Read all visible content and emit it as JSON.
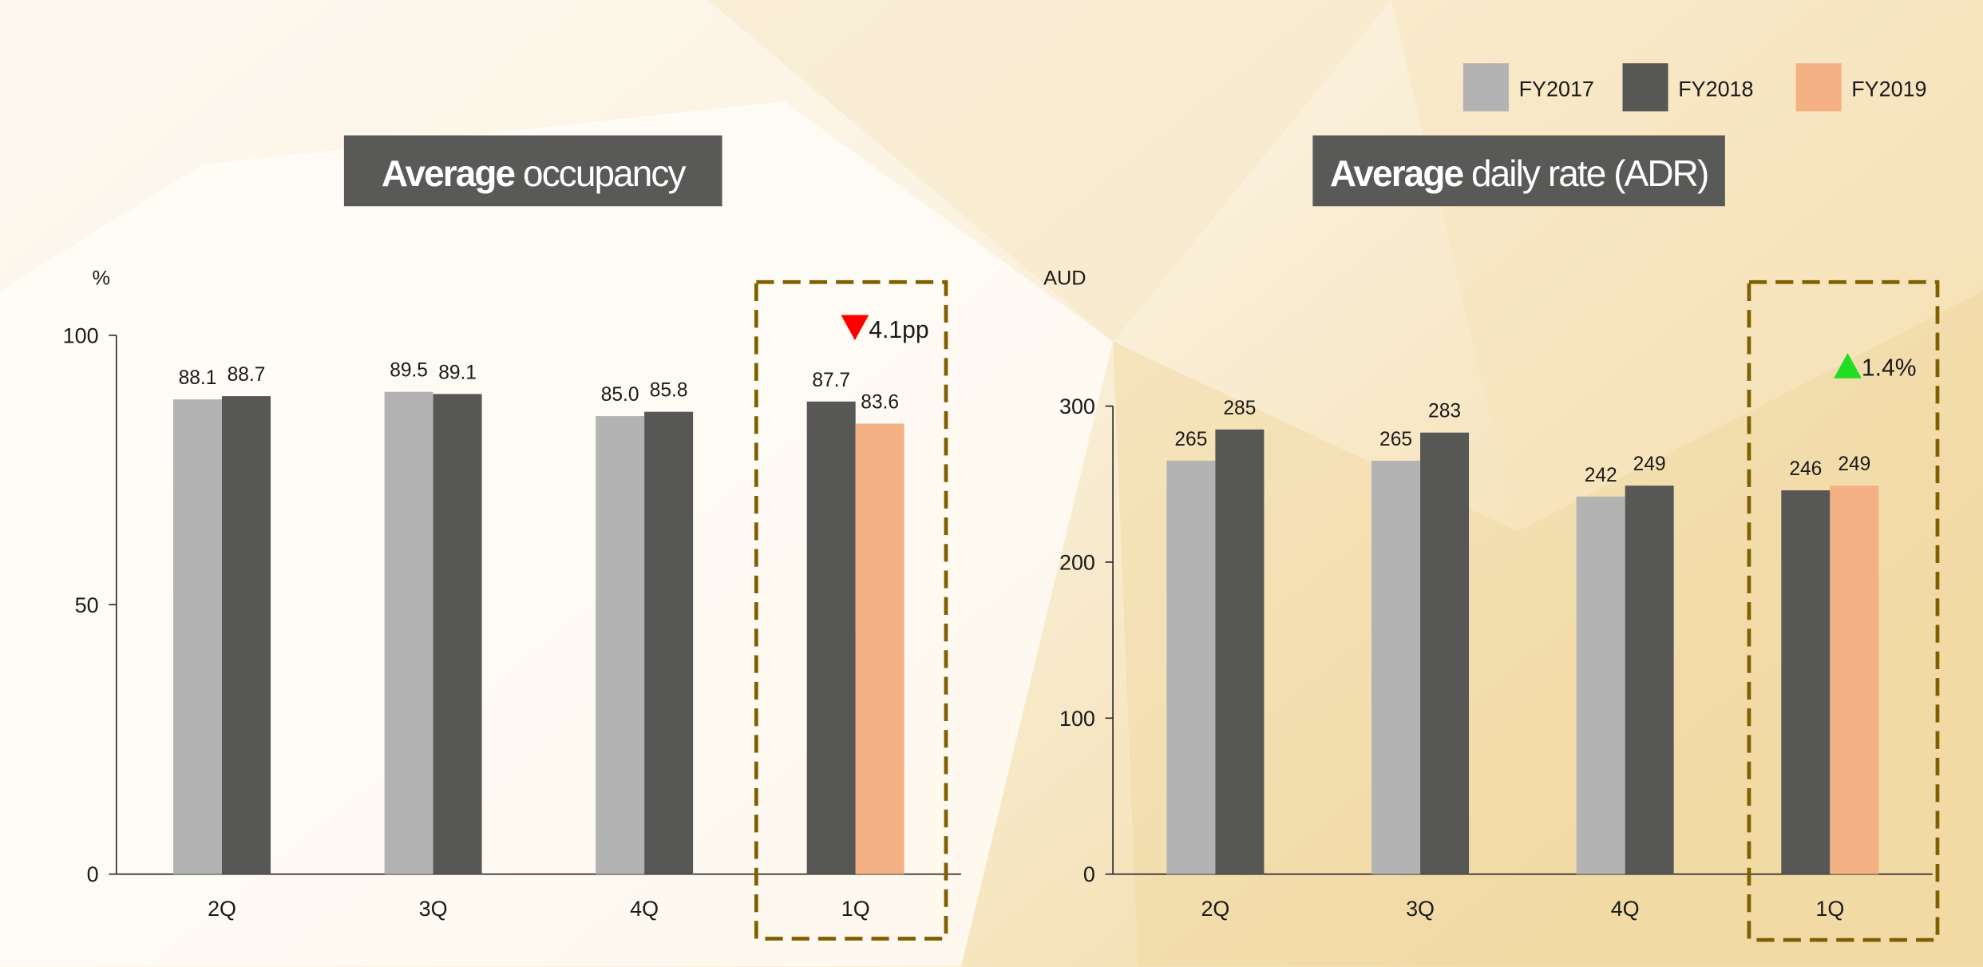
{
  "chart_data": [
    {
      "type": "bar",
      "title_emphasis": "Average",
      "title": "occupancy",
      "y_label": "%",
      "categories": [
        "2Q",
        "3Q",
        "4Q",
        "1Q"
      ],
      "series": [
        {
          "name": "FY2017",
          "color": "#b3b3b3",
          "values": [
            88.1,
            89.5,
            85.0,
            null
          ],
          "value_labels": [
            "88.1",
            "89.5",
            "85.0",
            null
          ]
        },
        {
          "name": "FY2018",
          "color": "#575756",
          "values": [
            88.7,
            89.1,
            85.8,
            87.7
          ]
        },
        {
          "name": "FY2019",
          "color": "#f4b183",
          "values": [
            null,
            null,
            null,
            83.6
          ]
        }
      ],
      "ylim": [
        0,
        100
      ],
      "yticks": [
        0,
        50,
        100
      ],
      "highlight": "1Q",
      "annotation": {
        "text": "4.1pp",
        "direction": "down",
        "color": "#ff0000"
      }
    },
    {
      "type": "bar",
      "title_emphasis": "Average",
      "title": "daily rate (ADR)",
      "y_label": "AUD",
      "categories": [
        "2Q",
        "3Q",
        "4Q",
        "1Q"
      ],
      "series": [
        {
          "name": "FY2017",
          "color": "#b3b3b3",
          "values": [
            265,
            265,
            242,
            null
          ]
        },
        {
          "name": "FY2018",
          "color": "#575756",
          "values": [
            285,
            283,
            249,
            246
          ]
        },
        {
          "name": "FY2019",
          "color": "#f4b183",
          "values": [
            null,
            null,
            null,
            249
          ]
        }
      ],
      "ylim": [
        0,
        300
      ],
      "yticks": [
        0,
        100,
        200,
        300
      ],
      "highlight": "1Q",
      "annotation": {
        "text": "1.4%",
        "direction": "up",
        "color": "#22dd22"
      }
    }
  ]
}
